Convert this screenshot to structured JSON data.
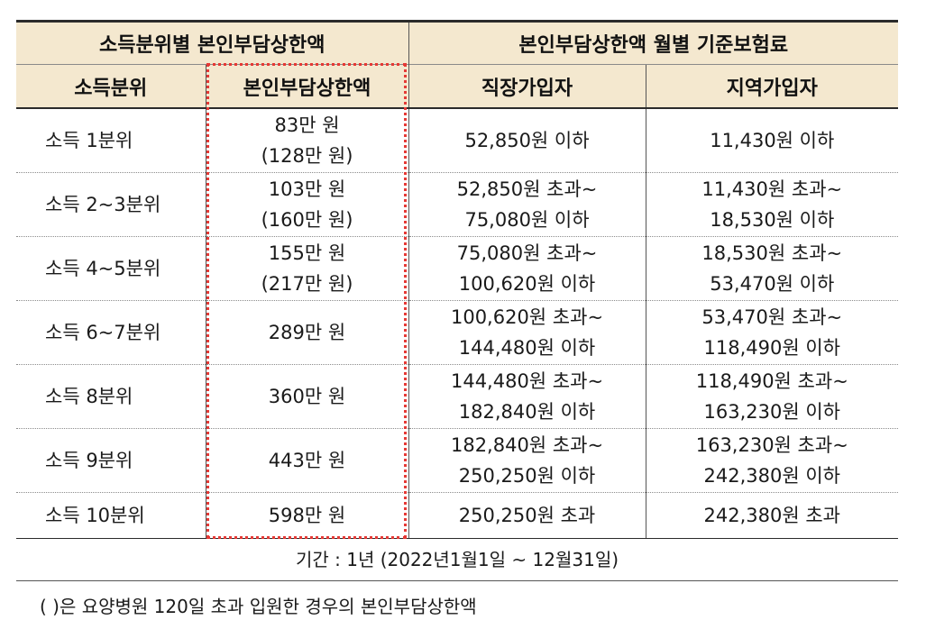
{
  "header_row1": {
    "col1": "소득분위별  본인부담상한액",
    "col2": "본인부담상한액 월별 기준보험료"
  },
  "header_row2": [
    "소득분위",
    "본인부담상한액",
    "직장가입자",
    "지역가입자"
  ],
  "rows": [
    {
      "label": "소득 1분위",
      "limit": [
        "83만 원",
        "(128만 원)"
      ],
      "employee": [
        "52,850원 이하"
      ],
      "regional": [
        "11,430원 이하"
      ]
    },
    {
      "label": "소득 2~3분위",
      "limit": [
        "103만 원",
        "(160만 원)"
      ],
      "employee": [
        "52,850원 초과~",
        "75,080원 이하"
      ],
      "regional": [
        "11,430원 초과~",
        "18,530원 이하"
      ]
    },
    {
      "label": "소득 4~5분위",
      "limit": [
        "155만 원",
        "(217만 원)"
      ],
      "employee": [
        "75,080원 초과~",
        "100,620원 이하"
      ],
      "regional": [
        "18,530원 초과~",
        "53,470원 이하"
      ]
    },
    {
      "label": "소득 6~7분위",
      "limit": [
        "289만 원"
      ],
      "employee": [
        "100,620원 초과~",
        "144,480원 이하"
      ],
      "regional": [
        "53,470원 초과~",
        "118,490원 이하"
      ]
    },
    {
      "label": "소득 8분위",
      "limit": [
        "360만 원"
      ],
      "employee": [
        "144,480원 초과~",
        "182,840원 이하"
      ],
      "regional": [
        "118,490원 초과~",
        "163,230원 이하"
      ]
    },
    {
      "label": "소득 9분위",
      "limit": [
        "443만 원"
      ],
      "employee": [
        "182,840원 초과~",
        "250,250원 이하"
      ],
      "regional": [
        "163,230원 초과~",
        "242,380원 이하"
      ]
    },
    {
      "label": "소득 10분위",
      "limit": [
        "598만 원"
      ],
      "employee": [
        "250,250원 초과"
      ],
      "regional": [
        "242,380원 초과"
      ]
    }
  ],
  "period": "기간 : 1년 (2022년1월1일 ~ 12월31일)",
  "note": "(    )은 요양병원 120일 초과 입원한 경우의 본인부담상한액",
  "colors": {
    "header_bg": "#f4e8cf",
    "highlight": "#e53935"
  }
}
